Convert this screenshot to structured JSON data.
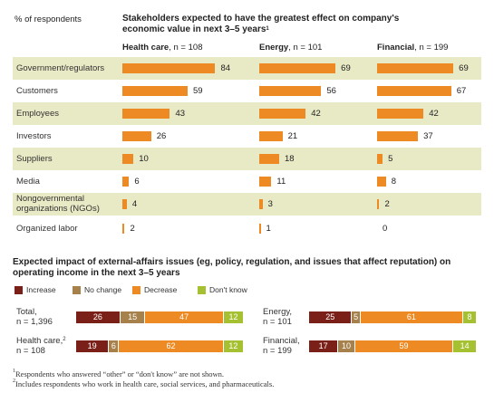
{
  "chart_data": [
    {
      "type": "bar",
      "y_caption": "% of respondents",
      "title": "Stakeholders expected to have the greatest effect on company's economic value in next 3–5 years",
      "title_footnote": "1",
      "categories": [
        "Government/regulators",
        "Customers",
        "Employees",
        "Investors",
        "Suppliers",
        "Media",
        "Nongovernmental organizations (NGOs)",
        "Organized labor"
      ],
      "series": [
        {
          "name": "Health care",
          "n_label": ", n = 108",
          "values": [
            84,
            59,
            43,
            26,
            10,
            6,
            4,
            2
          ]
        },
        {
          "name": "Energy",
          "n_label": ", n = 101",
          "values": [
            69,
            56,
            42,
            21,
            18,
            11,
            3,
            1
          ]
        },
        {
          "name": "Financial",
          "n_label": ", n = 199",
          "values": [
            69,
            67,
            42,
            37,
            5,
            8,
            2,
            0
          ]
        }
      ],
      "xlim": [
        0,
        100
      ],
      "colors": {
        "bar": "#ee8a23",
        "shade": "#e8e9c5"
      }
    },
    {
      "type": "bar",
      "stacked": true,
      "title": "Expected impact of external-affairs issues (eg, policy, regulation, and issues that affect reputation) on operating income in the next 3–5 years",
      "legend": [
        "Increase",
        "No change",
        "Decrease",
        "Don't know"
      ],
      "colors": [
        "#7b2019",
        "#a6814c",
        "#ee8a23",
        "#a5c132"
      ],
      "groups": [
        {
          "name": "Total,",
          "n": "n = 1,396",
          "values": [
            26,
            15,
            47,
            12
          ]
        },
        {
          "name": "Energy,",
          "n": "n = 101",
          "values": [
            25,
            5,
            61,
            8
          ]
        },
        {
          "name": "Health care,",
          "footnote": "2",
          "n": "n = 108",
          "values": [
            19,
            6,
            62,
            12
          ]
        },
        {
          "name": "Financial,",
          "n": "n = 199",
          "values": [
            17,
            10,
            59,
            14
          ]
        }
      ]
    }
  ],
  "footnotes": [
    {
      "mark": "1",
      "text": "Respondents who answered “other” or “don't know” are not shown."
    },
    {
      "mark": "2",
      "text": "Includes respondents who work in health care, social services, and pharmaceuticals."
    }
  ]
}
